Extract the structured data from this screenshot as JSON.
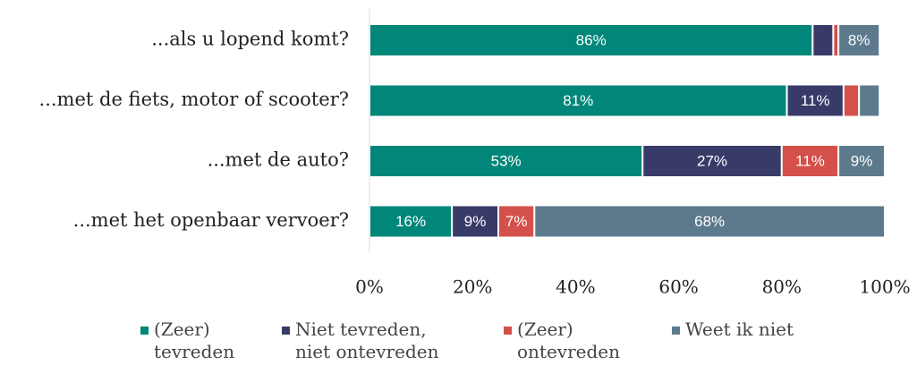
{
  "chart_data": {
    "type": "stacked-barh",
    "categories": [
      "...als u lopend komt?",
      "...met de fiets, motor of scooter?",
      "...met de auto?",
      "...met het openbaar vervoer?"
    ],
    "series": [
      {
        "name": "(Zeer) tevreden",
        "color": "#00877a",
        "values": [
          86,
          81,
          53,
          16
        ],
        "value_labels": [
          "86%",
          "81%",
          "53%",
          "16%"
        ]
      },
      {
        "name": "Niet tevreden, niet ontevreden",
        "color": "#383a68",
        "values": [
          4,
          11,
          27,
          9
        ],
        "value_labels": [
          null,
          "11%",
          "27%",
          "9%"
        ]
      },
      {
        "name": "(Zeer) ontevreden",
        "color": "#d4504a",
        "values": [
          1,
          3,
          11,
          7
        ],
        "value_labels": [
          null,
          null,
          "11%",
          "7%"
        ]
      },
      {
        "name": "Weet ik niet",
        "color": "#5d7a8c",
        "values": [
          8,
          4,
          9,
          68
        ],
        "value_labels": [
          "8%",
          null,
          "9%",
          "68%"
        ]
      }
    ],
    "xlim": [
      0,
      100
    ],
    "xticks": [
      {
        "value": 0,
        "label": "0%"
      },
      {
        "value": 20,
        "label": "20%"
      },
      {
        "value": 40,
        "label": "40%"
      },
      {
        "value": 60,
        "label": "60%"
      },
      {
        "value": 80,
        "label": "80%"
      },
      {
        "value": 100,
        "label": "100%"
      }
    ],
    "grid": false
  }
}
